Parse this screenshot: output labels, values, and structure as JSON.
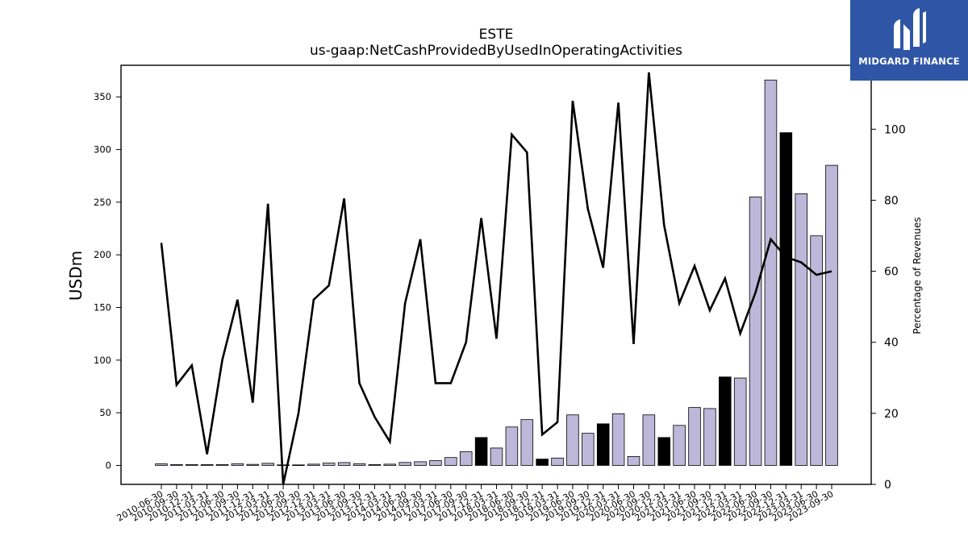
{
  "chart_data": {
    "type": "bar",
    "title": "ESTE",
    "subtitle": "us-gaap:NetCashProvidedByUsedInOperatingActivities",
    "ylabel": "USDm",
    "y2label": "Percentage of Revenues",
    "ylim": [
      -18,
      380
    ],
    "y2lim": [
      0,
      118
    ],
    "yticks": [
      0,
      50,
      100,
      150,
      200,
      250,
      300,
      350
    ],
    "y2ticks": [
      0,
      20,
      40,
      60,
      80,
      100
    ],
    "categories": [
      "2010-06-30",
      "2010-09-30",
      "2010-12-31",
      "2011-03-31",
      "2011-06-30",
      "2011-09-30",
      "2011-12-31",
      "2012-03-31",
      "2012-06-30",
      "2012-09-30",
      "2012-12-31",
      "2013-03-31",
      "2013-06-30",
      "2013-09-30",
      "2013-12-31",
      "2014-03-31",
      "2014-06-30",
      "2014-09-30",
      "2017-03-31",
      "2017-06-30",
      "2017-09-30",
      "2017-12-31",
      "2018-03-31",
      "2018-06-30",
      "2018-09-30",
      "2018-12-31",
      "2019-03-31",
      "2019-06-30",
      "2019-09-30",
      "2019-12-31",
      "2020-03-31",
      "2020-06-30",
      "2020-09-30",
      "2020-12-31",
      "2021-03-31",
      "2021-06-30",
      "2021-09-30",
      "2021-12-31",
      "2022-03-31",
      "2022-06-30",
      "2022-09-30",
      "2022-12-31",
      "2023-03-31",
      "2023-06-30",
      "2023-09-30"
    ],
    "series": [
      {
        "kind": "bar",
        "values": [
          1.5,
          0.8,
          0.8,
          0.8,
          0.8,
          1.5,
          1.0,
          2.0,
          0.5,
          0.5,
          1.2,
          2.2,
          2.7,
          1.5,
          0.8,
          1.2,
          2.8,
          3.5,
          4.5,
          7.5,
          13,
          26.5,
          16.5,
          36.5,
          43.5,
          6,
          7,
          48,
          30.5,
          39.5,
          49,
          8.5,
          48,
          26.5,
          38,
          55,
          54,
          84,
          83,
          255,
          366,
          316,
          258,
          218,
          285
        ],
        "highlight": [
          false,
          false,
          false,
          false,
          false,
          false,
          false,
          false,
          false,
          false,
          false,
          false,
          false,
          false,
          false,
          false,
          false,
          false,
          false,
          false,
          false,
          true,
          false,
          false,
          false,
          true,
          false,
          false,
          false,
          true,
          false,
          false,
          false,
          true,
          false,
          false,
          false,
          true,
          false,
          false,
          false,
          true,
          false,
          false,
          false
        ]
      },
      {
        "kind": "line",
        "axis": "right",
        "values": [
          68,
          28,
          33.5,
          8.5,
          35,
          52,
          23,
          79,
          0,
          20,
          52,
          56,
          80.5,
          28.5,
          19,
          12,
          51,
          69,
          28.5,
          28.5,
          40,
          75,
          41,
          98.5,
          93.5,
          14,
          17.5,
          108,
          77.5,
          61,
          107.5,
          39.5,
          116,
          73,
          51,
          61.5,
          49,
          58,
          42.5,
          54,
          69,
          64,
          62.5,
          59,
          60
        ]
      }
    ],
    "colors": {
      "bar": "#bdb8d9",
      "bar_highlight": "#000000",
      "bar_edge": "#000000",
      "line": "#000000"
    }
  },
  "logo": {
    "text": "MIDGARD FINANCE",
    "background": "#2f56a6"
  }
}
